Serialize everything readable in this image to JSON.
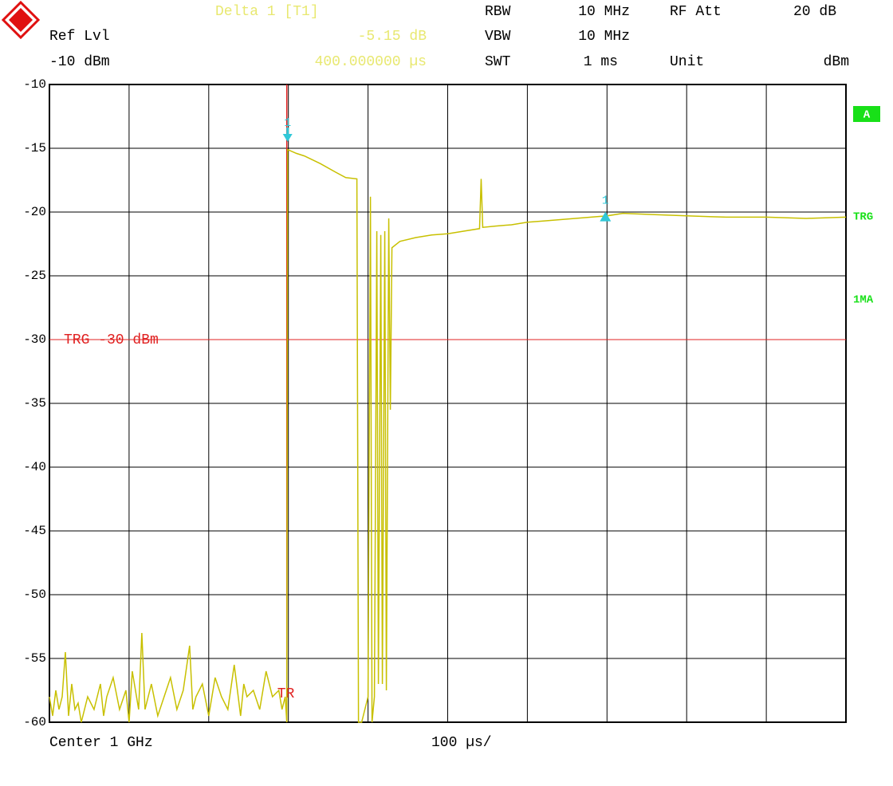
{
  "header": {
    "marker_title": "Delta 1 [T1]",
    "marker_value": "-5.15 dB",
    "marker_time": "400.000000 µs",
    "ref_lvl_label": "Ref Lvl",
    "ref_lvl_value": "-10 dBm",
    "rbw_label": "RBW",
    "rbw_value": "10 MHz",
    "vbw_label": "VBW",
    "vbw_value": "10 MHz",
    "swt_label": "SWT",
    "swt_value": "1 ms",
    "rf_att_label": "RF Att",
    "rf_att_value": "20 dB",
    "unit_label": "Unit",
    "unit_value": "dBm"
  },
  "side_labels": [
    "A",
    "TRG",
    "1MA"
  ],
  "footer": {
    "center": "Center 1 GHz",
    "span": "100 µs/"
  },
  "chart_data": {
    "type": "line",
    "color": "#c8c000",
    "x": [
      0,
      4,
      8,
      12,
      16,
      20,
      24,
      28,
      32,
      36,
      40,
      48,
      56,
      64,
      68,
      72,
      80,
      88,
      96,
      100,
      104,
      112,
      116,
      120,
      128,
      136,
      144,
      152,
      160,
      168,
      176,
      180,
      184,
      192,
      200,
      208,
      216,
      224,
      232,
      240,
      244,
      248,
      256,
      264,
      272,
      280,
      288,
      292,
      296,
      298,
      299,
      310,
      320,
      340,
      360,
      372,
      386,
      388,
      392,
      396,
      400,
      403,
      405,
      408,
      411,
      413,
      416,
      418,
      421,
      423,
      426,
      428,
      430,
      440,
      460,
      480,
      500,
      520,
      540,
      542,
      544,
      560,
      580,
      600,
      620,
      640,
      660,
      680,
      700,
      720,
      760,
      800,
      850,
      900,
      950,
      1000
    ],
    "values": [
      -58,
      -59.5,
      -57.5,
      -59,
      -58,
      -54.5,
      -59.5,
      -57,
      -59,
      -58.5,
      -60,
      -58,
      -59,
      -57,
      -59.5,
      -58,
      -56.5,
      -59,
      -57.5,
      -60,
      -56,
      -59,
      -53,
      -59,
      -57,
      -59.5,
      -58,
      -56.5,
      -59,
      -57.5,
      -54,
      -59,
      -58,
      -57,
      -59.5,
      -56.5,
      -58,
      -59,
      -55.5,
      -59.5,
      -57,
      -58,
      -57.5,
      -59,
      -56,
      -58,
      -57.5,
      -59,
      -58,
      -60,
      -15.1,
      -15.4,
      -15.6,
      -16.2,
      -16.9,
      -17.3,
      -17.4,
      -60,
      -60,
      -59,
      -58,
      -18.8,
      -60,
      -58,
      -21.5,
      -57,
      -21.8,
      -57,
      -21.5,
      -57.5,
      -20.5,
      -35.5,
      -22.8,
      -22.3,
      -22.0,
      -21.8,
      -21.7,
      -21.5,
      -21.3,
      -17.4,
      -21.2,
      -21.1,
      -21.0,
      -20.8,
      -20.7,
      -20.6,
      -20.5,
      -20.4,
      -20.3,
      -20.1,
      -20.2,
      -20.3,
      -20.4,
      -20.4,
      -20.5,
      -20.4
    ],
    "xlim": [
      0,
      1000
    ],
    "xticks": [
      0,
      100,
      200,
      300,
      400,
      500,
      600,
      700,
      800,
      900,
      1000
    ],
    "ylim": [
      -60,
      -10
    ],
    "yticks": [
      -10,
      -15,
      -20,
      -25,
      -30,
      -35,
      -40,
      -45,
      -50,
      -55,
      -60
    ],
    "grid": true,
    "trigger": {
      "level": -30,
      "label": "TRG -30 dBm",
      "x": 298,
      "x_label": "TR",
      "color": "#e02020"
    },
    "markers": [
      {
        "label": "1",
        "x": 299,
        "y": -14.5,
        "shape": "arrow"
      },
      {
        "label": "1",
        "x": 698,
        "y": -20.6,
        "shape": "triangle"
      }
    ],
    "marker_color": "#30c8d8"
  }
}
